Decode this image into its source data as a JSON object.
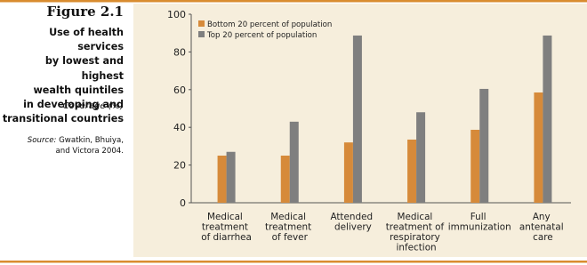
{
  "figure_label": "Figure 2.1",
  "chart_data": {
    "type": "bar",
    "title": "Use of health services\nby lowest and highest\nwealth quintiles\nin developing and\ntransitional countries",
    "subtitle": "Coverage (%)",
    "source_label": "Source:",
    "source_text": "Gwatkin, Bhuiya,\nand Victora 2004.",
    "categories": [
      "Medical\ntreatment\nof diarrhea",
      "Medical\ntreatment\nof fever",
      "Attended\ndelivery",
      "Medical\ntreatment of\nrespiratory\ninfection",
      "Full\nimmunization",
      "Any\nantenatal\ncare"
    ],
    "series": [
      {
        "name": "Bottom 20 percent of population",
        "color": "#d68a3a",
        "values": [
          25,
          25,
          32,
          33.5,
          38.7,
          58.5
        ]
      },
      {
        "name": "Top 20 percent of population",
        "color": "#7f7f7f",
        "values": [
          27,
          43,
          88.7,
          48,
          60.4,
          88.7
        ]
      }
    ],
    "ylim": [
      0,
      100
    ],
    "yticks": [
      0,
      20,
      40,
      60,
      80,
      100
    ],
    "legend": "top-left",
    "grid": false
  }
}
